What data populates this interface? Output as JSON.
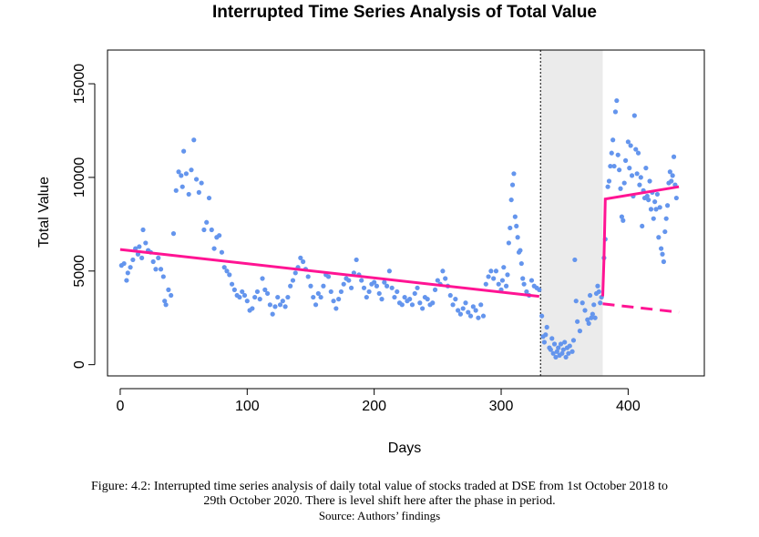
{
  "caption": {
    "line1": "Figure: 4.2: Interrupted time series analysis of daily total value of stocks traded at DSE from 1st October 2018 to",
    "line2": "29th October 2020. There is level shift here after the phase in period.",
    "source": "Source: Authors’ findings"
  },
  "chart_data": {
    "type": "scatter",
    "title": "Interrupted Time Series Analysis of Total Value",
    "xlabel": "Days",
    "ylabel": "Total Value",
    "xlim": [
      -10,
      460
    ],
    "ylim": [
      -600,
      16800
    ],
    "x_ticks": [
      0,
      100,
      200,
      300,
      400
    ],
    "y_ticks": [
      0,
      5000,
      10000,
      15000
    ],
    "grid": false,
    "legend": "none",
    "colors": {
      "points": "#6495ED",
      "fit": "#FF1493",
      "shade": "#EBEBEB",
      "intervention_line": "#000000"
    },
    "intervention_start": 331,
    "intervention_end": 380,
    "series": [
      {
        "values": [
          [
            1,
            5300
          ],
          [
            3,
            5400
          ],
          [
            5,
            4500
          ],
          [
            6,
            4900
          ],
          [
            8,
            5200
          ],
          [
            10,
            5600
          ],
          [
            12,
            6200
          ],
          [
            14,
            5900
          ],
          [
            15,
            6300
          ],
          [
            17,
            5700
          ],
          [
            18,
            7200
          ],
          [
            20,
            6500
          ],
          [
            22,
            6100
          ],
          [
            24,
            6000
          ],
          [
            26,
            5500
          ],
          [
            28,
            5100
          ],
          [
            30,
            5700
          ],
          [
            32,
            5100
          ],
          [
            34,
            4700
          ],
          [
            35,
            3400
          ],
          [
            36,
            3200
          ],
          [
            38,
            4000
          ],
          [
            40,
            3700
          ],
          [
            42,
            7000
          ],
          [
            44,
            9300
          ],
          [
            46,
            10300
          ],
          [
            48,
            10100
          ],
          [
            49,
            9500
          ],
          [
            50,
            11400
          ],
          [
            52,
            10200
          ],
          [
            54,
            9100
          ],
          [
            56,
            10400
          ],
          [
            58,
            12000
          ],
          [
            60,
            9900
          ],
          [
            62,
            9200
          ],
          [
            64,
            9700
          ],
          [
            66,
            7200
          ],
          [
            68,
            7600
          ],
          [
            70,
            8900
          ],
          [
            72,
            7200
          ],
          [
            74,
            6200
          ],
          [
            76,
            6800
          ],
          [
            78,
            6900
          ],
          [
            80,
            6000
          ],
          [
            82,
            5200
          ],
          [
            84,
            5000
          ],
          [
            86,
            4800
          ],
          [
            88,
            4300
          ],
          [
            90,
            4000
          ],
          [
            92,
            3700
          ],
          [
            94,
            3600
          ],
          [
            96,
            3900
          ],
          [
            98,
            3700
          ],
          [
            100,
            3400
          ],
          [
            102,
            2900
          ],
          [
            104,
            3000
          ],
          [
            106,
            3600
          ],
          [
            108,
            3900
          ],
          [
            110,
            3500
          ],
          [
            112,
            4600
          ],
          [
            114,
            4000
          ],
          [
            116,
            3800
          ],
          [
            118,
            3200
          ],
          [
            120,
            2700
          ],
          [
            122,
            3100
          ],
          [
            124,
            3600
          ],
          [
            126,
            3200
          ],
          [
            128,
            3400
          ],
          [
            130,
            3100
          ],
          [
            132,
            3600
          ],
          [
            134,
            4200
          ],
          [
            136,
            4500
          ],
          [
            138,
            4900
          ],
          [
            140,
            5200
          ],
          [
            142,
            5700
          ],
          [
            144,
            5500
          ],
          [
            146,
            5100
          ],
          [
            148,
            4700
          ],
          [
            150,
            4200
          ],
          [
            152,
            3600
          ],
          [
            154,
            3200
          ],
          [
            156,
            3800
          ],
          [
            158,
            3600
          ],
          [
            160,
            4200
          ],
          [
            162,
            4800
          ],
          [
            164,
            4700
          ],
          [
            166,
            3900
          ],
          [
            168,
            3400
          ],
          [
            170,
            3000
          ],
          [
            172,
            3500
          ],
          [
            174,
            3900
          ],
          [
            176,
            4300
          ],
          [
            178,
            4600
          ],
          [
            180,
            4500
          ],
          [
            182,
            4100
          ],
          [
            184,
            4900
          ],
          [
            186,
            5600
          ],
          [
            188,
            4800
          ],
          [
            190,
            4500
          ],
          [
            192,
            4100
          ],
          [
            194,
            3600
          ],
          [
            196,
            3900
          ],
          [
            198,
            4300
          ],
          [
            200,
            4400
          ],
          [
            202,
            4200
          ],
          [
            204,
            3800
          ],
          [
            206,
            3500
          ],
          [
            208,
            4400
          ],
          [
            210,
            4200
          ],
          [
            212,
            5000
          ],
          [
            214,
            4100
          ],
          [
            216,
            3600
          ],
          [
            218,
            3900
          ],
          [
            220,
            3300
          ],
          [
            222,
            3200
          ],
          [
            224,
            3600
          ],
          [
            226,
            3400
          ],
          [
            228,
            3500
          ],
          [
            230,
            3200
          ],
          [
            232,
            3800
          ],
          [
            234,
            4100
          ],
          [
            236,
            3300
          ],
          [
            238,
            3000
          ],
          [
            240,
            3600
          ],
          [
            242,
            3500
          ],
          [
            244,
            3200
          ],
          [
            246,
            3300
          ],
          [
            248,
            4000
          ],
          [
            250,
            4500
          ],
          [
            252,
            4300
          ],
          [
            254,
            5000
          ],
          [
            256,
            4600
          ],
          [
            258,
            4200
          ],
          [
            260,
            3700
          ],
          [
            262,
            3200
          ],
          [
            264,
            3500
          ],
          [
            266,
            2900
          ],
          [
            268,
            2700
          ],
          [
            270,
            3000
          ],
          [
            272,
            3300
          ],
          [
            274,
            2800
          ],
          [
            276,
            2600
          ],
          [
            278,
            3100
          ],
          [
            280,
            2900
          ],
          [
            282,
            2500
          ],
          [
            284,
            3200
          ],
          [
            286,
            2600
          ],
          [
            288,
            4300
          ],
          [
            290,
            4700
          ],
          [
            292,
            5000
          ],
          [
            294,
            4600
          ],
          [
            296,
            5000
          ],
          [
            298,
            4300
          ],
          [
            300,
            4000
          ],
          [
            301,
            4500
          ],
          [
            302,
            5200
          ],
          [
            304,
            4200
          ],
          [
            305,
            4800
          ],
          [
            306,
            6500
          ],
          [
            307,
            7300
          ],
          [
            308,
            8800
          ],
          [
            309,
            9600
          ],
          [
            310,
            10200
          ],
          [
            311,
            7900
          ],
          [
            312,
            7400
          ],
          [
            313,
            6800
          ],
          [
            314,
            6000
          ],
          [
            315,
            6100
          ],
          [
            316,
            5400
          ],
          [
            317,
            4600
          ],
          [
            318,
            4300
          ],
          [
            320,
            3900
          ],
          [
            322,
            3700
          ],
          [
            324,
            4500
          ],
          [
            326,
            4200
          ],
          [
            328,
            4100
          ],
          [
            330,
            4000
          ],
          [
            332,
            2600
          ],
          [
            333,
            1500
          ],
          [
            334,
            1200
          ],
          [
            335,
            1600
          ],
          [
            336,
            2000
          ],
          [
            338,
            900
          ],
          [
            339,
            800
          ],
          [
            340,
            1400
          ],
          [
            341,
            600
          ],
          [
            342,
            1100
          ],
          [
            343,
            400
          ],
          [
            344,
            700
          ],
          [
            345,
            900
          ],
          [
            346,
            500
          ],
          [
            347,
            1100
          ],
          [
            348,
            600
          ],
          [
            349,
            800
          ],
          [
            350,
            1200
          ],
          [
            351,
            400
          ],
          [
            352,
            900
          ],
          [
            353,
            600
          ],
          [
            354,
            1000
          ],
          [
            356,
            700
          ],
          [
            357,
            1300
          ],
          [
            358,
            5600
          ],
          [
            359,
            3400
          ],
          [
            360,
            2300
          ],
          [
            362,
            1800
          ],
          [
            364,
            3300
          ],
          [
            366,
            2900
          ],
          [
            368,
            2400
          ],
          [
            369,
            2200
          ],
          [
            370,
            3700
          ],
          [
            371,
            2500
          ],
          [
            372,
            2700
          ],
          [
            373,
            3200
          ],
          [
            374,
            2500
          ],
          [
            375,
            3800
          ],
          [
            376,
            4200
          ],
          [
            377,
            3900
          ],
          [
            378,
            3300
          ],
          [
            379,
            3600
          ],
          [
            381,
            5700
          ],
          [
            382,
            6700
          ],
          [
            384,
            9500
          ],
          [
            385,
            9800
          ],
          [
            386,
            10600
          ],
          [
            387,
            11300
          ],
          [
            388,
            12000
          ],
          [
            389,
            10600
          ],
          [
            390,
            13500
          ],
          [
            391,
            14100
          ],
          [
            392,
            11200
          ],
          [
            393,
            10400
          ],
          [
            394,
            9400
          ],
          [
            395,
            7900
          ],
          [
            396,
            7700
          ],
          [
            397,
            9700
          ],
          [
            398,
            10900
          ],
          [
            400,
            11900
          ],
          [
            401,
            10500
          ],
          [
            402,
            11700
          ],
          [
            403,
            10100
          ],
          [
            404,
            9000
          ],
          [
            405,
            13300
          ],
          [
            406,
            11500
          ],
          [
            407,
            10200
          ],
          [
            408,
            11300
          ],
          [
            409,
            9600
          ],
          [
            410,
            10000
          ],
          [
            411,
            7400
          ],
          [
            412,
            9300
          ],
          [
            413,
            8900
          ],
          [
            414,
            10500
          ],
          [
            415,
            9000
          ],
          [
            416,
            8800
          ],
          [
            417,
            9800
          ],
          [
            418,
            8300
          ],
          [
            419,
            9200
          ],
          [
            420,
            7800
          ],
          [
            421,
            8700
          ],
          [
            422,
            8300
          ],
          [
            423,
            9100
          ],
          [
            424,
            6800
          ],
          [
            425,
            8400
          ],
          [
            426,
            6200
          ],
          [
            427,
            5900
          ],
          [
            428,
            5500
          ],
          [
            429,
            7100
          ],
          [
            430,
            7800
          ],
          [
            431,
            8500
          ],
          [
            432,
            9700
          ],
          [
            433,
            10300
          ],
          [
            434,
            9800
          ],
          [
            435,
            10100
          ],
          [
            436,
            11100
          ],
          [
            437,
            9600
          ],
          [
            438,
            8900
          ]
        ]
      },
      {
        "name": "",
        "type": "line",
        "style": "solid",
        "values": [
          [
            0,
            6150
          ],
          [
            330,
            3650
          ]
        ]
      },
      {
        "type": "line",
        "style": "solid",
        "values": [
          [
            380,
            3650
          ],
          [
            381,
            5700
          ],
          [
            382,
            8850
          ],
          [
            440,
            9500
          ]
        ]
      },
      {
        "type": "line",
        "style": "dashed",
        "values": [
          [
            380,
            3250
          ],
          [
            440,
            2800
          ]
        ]
      }
    ]
  }
}
